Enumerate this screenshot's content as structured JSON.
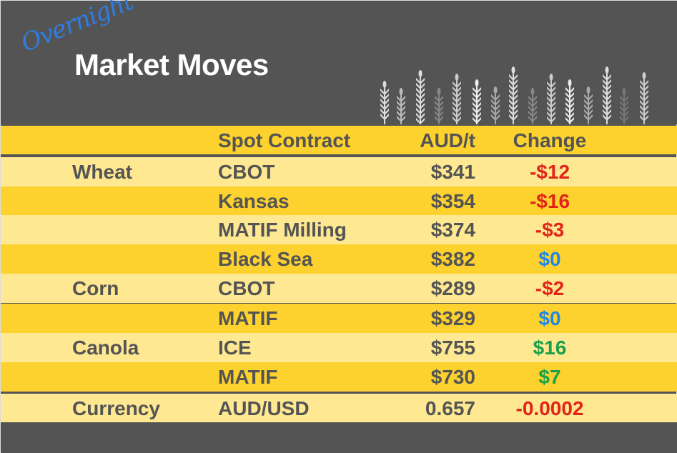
{
  "header": {
    "overnight": "Overnight",
    "title": "Market Moves",
    "icon": "wheat-stalks-icon"
  },
  "columns": [
    "",
    "Spot Contract",
    "AUD/t",
    "Change"
  ],
  "rows": [
    {
      "commodity": "Wheat",
      "contract": "CBOT",
      "price": "$341",
      "change": "-$12",
      "change_color": "#e2231a"
    },
    {
      "commodity": "",
      "contract": "Kansas",
      "price": "$354",
      "change": "-$16",
      "change_color": "#e2231a"
    },
    {
      "commodity": "",
      "contract": "MATIF Milling",
      "price": "$374",
      "change": "-$3",
      "change_color": "#e2231a"
    },
    {
      "commodity": "",
      "contract": "Black Sea",
      "price": "$382",
      "change": "$0",
      "change_color": "#1e88e5"
    },
    {
      "commodity": "Corn",
      "contract": "CBOT",
      "price": "$289",
      "change": "-$2",
      "change_color": "#e2231a"
    },
    {
      "commodity": "",
      "contract": "MATIF",
      "price": "$329",
      "change": "$0",
      "change_color": "#1e88e5"
    },
    {
      "commodity": "Canola",
      "contract": "ICE",
      "price": "$755",
      "change": "$16",
      "change_color": "#1aa14a"
    },
    {
      "commodity": "",
      "contract": "MATIF",
      "price": "$730",
      "change": "$7",
      "change_color": "#1aa14a"
    },
    {
      "commodity": "Currency",
      "contract": "AUD/USD",
      "price": "0.657",
      "change": "-0.0002",
      "change_color": "#e2231a"
    }
  ],
  "colors": {
    "background": "#545454",
    "header_row": "#fdd22e",
    "row_dark": "#fdd22e",
    "row_light": "#fee891",
    "title": "#ffffff",
    "overnight": "#2f7de1"
  }
}
